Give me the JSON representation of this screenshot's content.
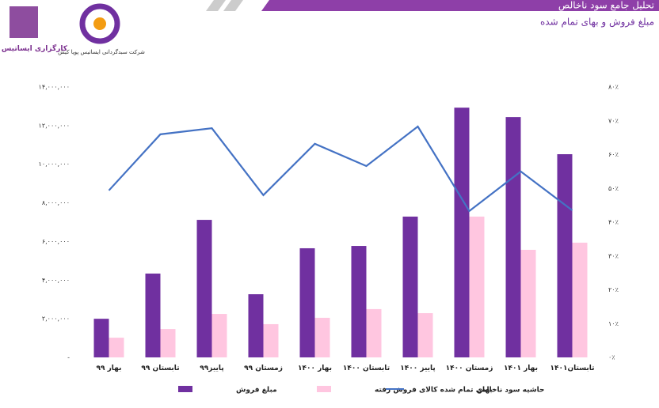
{
  "logos": {
    "left": "کارگزاری ایساتیس پویا",
    "right": "شرکت سبدگردانی ایساتیس پویا کیش"
  },
  "chart_data": {
    "type": "bar_line",
    "title": "تحلیل جامع سود ناخالص",
    "subtitle": "مبلغ فروش و بهای تمام شده",
    "categories": [
      "بهار ۹۹",
      "تابستان ۹۹",
      "پاییز۹۹",
      "زمستان ۹۹",
      "بهار ۱۴۰۰",
      "تابستان ۱۴۰۰",
      "پاییز ۱۴۰۰",
      "زمستان ۱۴۰۰",
      "بهار ۱۴۰۱",
      "تابستان۱۴۰۱"
    ],
    "series": [
      {
        "name": "مبلغ فروش",
        "color": "#7030a0",
        "kind": "bar",
        "values": [
          2000000,
          4340000,
          7120000,
          3270000,
          5650000,
          5770000,
          7290000,
          12930000,
          12440000,
          10520000
        ]
      },
      {
        "name": "بهای تمام شده کالای فروش رفته",
        "color": "#ffc6e0",
        "kind": "bar",
        "values": [
          1020000,
          1470000,
          2250000,
          1720000,
          2050000,
          2500000,
          2290000,
          7290000,
          5570000,
          5940000
        ]
      },
      {
        "name": "حاشیه سود ناخالص",
        "color": "#4472c4",
        "kind": "line",
        "axis": "y2",
        "values": [
          49.4,
          66.0,
          67.8,
          48.0,
          63.2,
          56.6,
          68.3,
          43.3,
          55.0,
          43.5
        ]
      }
    ],
    "ylim": [
      0,
      14000000
    ],
    "yticks": [
      {
        "value": 0,
        "label": "-"
      },
      {
        "value": 2000000,
        "label": "۲,۰۰۰,۰۰۰"
      },
      {
        "value": 4000000,
        "label": "۴,۰۰۰,۰۰۰"
      },
      {
        "value": 6000000,
        "label": "۶,۰۰۰,۰۰۰"
      },
      {
        "value": 8000000,
        "label": "۸,۰۰۰,۰۰۰"
      },
      {
        "value": 10000000,
        "label": "۱۰,۰۰۰,۰۰۰"
      },
      {
        "value": 12000000,
        "label": "۱۲,۰۰۰,۰۰۰"
      },
      {
        "value": 14000000,
        "label": "۱۴,۰۰۰,۰۰۰"
      }
    ],
    "y2lim": [
      0,
      80
    ],
    "y2ticks": [
      {
        "value": 0,
        "label": "۰٪"
      },
      {
        "value": 10,
        "label": "۱۰٪"
      },
      {
        "value": 20,
        "label": "۲۰٪"
      },
      {
        "value": 30,
        "label": "۳۰٪"
      },
      {
        "value": 40,
        "label": "۴۰٪"
      },
      {
        "value": 50,
        "label": "۵۰٪"
      },
      {
        "value": 60,
        "label": "۶۰٪"
      },
      {
        "value": 70,
        "label": "۷۰٪"
      },
      {
        "value": 80,
        "label": "۸۰٪"
      }
    ]
  }
}
